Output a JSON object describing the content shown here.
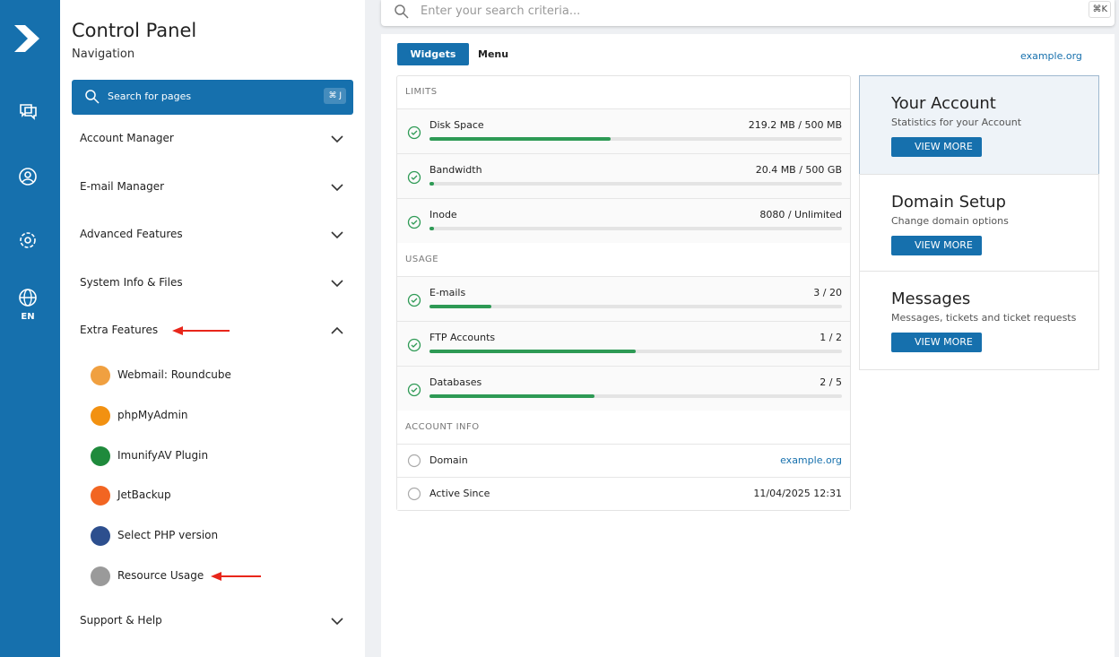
{
  "rail": {
    "language": "EN"
  },
  "sidebar": {
    "title": "Control Panel",
    "subtitle": "Navigation",
    "search": "Search for pages",
    "search_shortcut": "⌘ J",
    "menu": [
      {
        "label": "Account Manager"
      },
      {
        "label": "E-mail Manager"
      },
      {
        "label": "Advanced Features"
      },
      {
        "label": "System Info & Files"
      },
      {
        "label": "Extra Features",
        "expanded": true
      },
      {
        "label": "Support & Help"
      }
    ],
    "extra_items": [
      {
        "label": "Webmail: Roundcube",
        "color": "#f0a040"
      },
      {
        "label": "phpMyAdmin",
        "color": "#f29111"
      },
      {
        "label": "ImunifyAV Plugin",
        "color": "#1f8a3c"
      },
      {
        "label": "JetBackup",
        "color": "#f26522"
      },
      {
        "label": "Select PHP version",
        "color": "#2d4f8e"
      },
      {
        "label": "Resource Usage",
        "color": "#9a9a9a"
      }
    ]
  },
  "topbar": {
    "search_placeholder": "Enter your search criteria...",
    "shortcut": "⌘K"
  },
  "tabs": [
    "Widgets",
    "Menu"
  ],
  "domain_selector": "example.org",
  "sections": [
    {
      "heading": "LIMITS",
      "rows": [
        {
          "label": "Disk Space",
          "value": "219.2 MB / 500 MB",
          "progress": 44
        },
        {
          "label": "Bandwidth",
          "value": "20.4 MB / 500 GB",
          "progress": 1
        },
        {
          "label": "Inode",
          "value": "8080 / Unlimited",
          "progress": 1
        }
      ]
    },
    {
      "heading": "USAGE",
      "rows": [
        {
          "label": "E-mails",
          "value": "3 / 20",
          "progress": 15
        },
        {
          "label": "FTP Accounts",
          "value": "1 / 2",
          "progress": 50
        },
        {
          "label": "Databases",
          "value": "2 / 5",
          "progress": 40
        }
      ]
    },
    {
      "heading": "ACCOUNT INFO",
      "rows": [
        {
          "label": "Domain",
          "value": "example.org"
        },
        {
          "label": "Active Since",
          "value": "11/04/2025 12:31"
        }
      ]
    }
  ],
  "cards": [
    {
      "title": "Your Account",
      "subtitle": "Statistics for your Account",
      "button": "VIEW MORE"
    },
    {
      "title": "Domain Setup",
      "subtitle": "Change domain options",
      "button": "VIEW MORE"
    },
    {
      "title": "Messages",
      "subtitle": "Messages, tickets and ticket requests",
      "button": "VIEW MORE"
    }
  ]
}
